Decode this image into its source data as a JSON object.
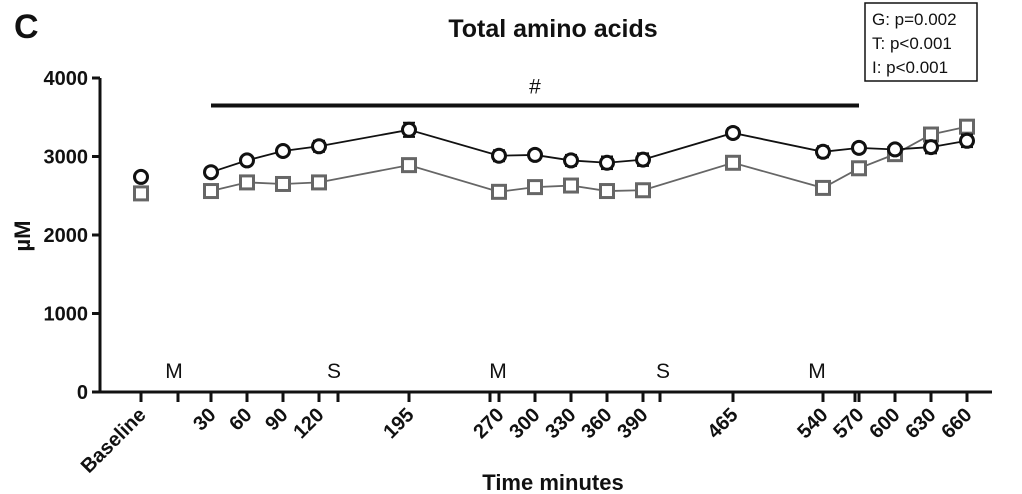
{
  "chart_data": {
    "type": "line",
    "panel_label": "C",
    "title": "Total amino acids",
    "xlabel": "Time minutes",
    "ylabel": "µM",
    "ylim": [
      0,
      4000
    ],
    "yticks": [
      0,
      1000,
      2000,
      3000,
      4000
    ],
    "grid": false,
    "x_tick_labels": [
      "Baseline",
      "30",
      "60",
      "90",
      "120",
      "195",
      "270",
      "300",
      "330",
      "360",
      "390",
      "465",
      "540",
      "570",
      "600",
      "630",
      "660"
    ],
    "x_values": [
      0,
      30,
      60,
      90,
      120,
      195,
      270,
      300,
      330,
      360,
      390,
      465,
      540,
      570,
      600,
      630,
      660
    ],
    "series": [
      {
        "marker": "circle",
        "color": "#111111",
        "values": [
          2740,
          2800,
          2950,
          3070,
          3130,
          3340,
          3010,
          3020,
          2950,
          2920,
          2960,
          3300,
          3060,
          3110,
          3090,
          3120,
          3200
        ],
        "errors": [
          40,
          40,
          50,
          50,
          70,
          90,
          70,
          60,
          70,
          80,
          80,
          60,
          70,
          60,
          50,
          80,
          80
        ]
      },
      {
        "marker": "square",
        "color": "#666666",
        "values": [
          2530,
          2560,
          2670,
          2650,
          2670,
          2890,
          2550,
          2610,
          2630,
          2560,
          2570,
          2920,
          2600,
          2850,
          3030,
          3280,
          3380
        ],
        "errors": [
          30,
          30,
          30,
          30,
          30,
          30,
          30,
          30,
          30,
          30,
          30,
          30,
          30,
          30,
          30,
          30,
          30
        ]
      }
    ],
    "significance_bar": {
      "label": "#",
      "x_start": 30,
      "x_end": 570,
      "y": 3650
    },
    "meal_annotations": [
      {
        "label": "M",
        "x": 15
      },
      {
        "label": "S",
        "x": 150
      },
      {
        "label": "M",
        "x": 270
      },
      {
        "label": "S",
        "x": 400
      },
      {
        "label": "M",
        "x": 540
      }
    ],
    "stats_box": [
      "G: p=0.002",
      "T: p<0.001",
      "I: p<0.001"
    ],
    "legend_position": "top-right"
  }
}
